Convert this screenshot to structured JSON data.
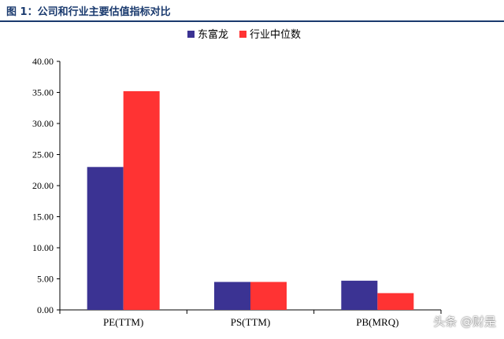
{
  "figure_title": "图 1：公司和行业主要估值指标对比",
  "watermark": "头条 @财是",
  "colors": {
    "company": "#3b3393",
    "industry": "#ff3333",
    "title": "#1a3a6e",
    "axis": "#000000"
  },
  "chart_data": {
    "type": "bar",
    "title": "",
    "xlabel": "",
    "ylabel": "",
    "categories": [
      "PE(TTM)",
      "PS(TTM)",
      "PB(MRQ)"
    ],
    "series": [
      {
        "name": "东富龙",
        "values": [
          23.0,
          4.5,
          4.7
        ]
      },
      {
        "name": "行业中位数",
        "values": [
          35.2,
          4.5,
          2.7
        ]
      }
    ],
    "ylim": [
      0,
      40
    ],
    "yticks": [
      "0.00",
      "5.00",
      "10.00",
      "15.00",
      "20.00",
      "25.00",
      "30.00",
      "35.00",
      "40.00"
    ],
    "grid": false,
    "legend_position": "top-center"
  }
}
